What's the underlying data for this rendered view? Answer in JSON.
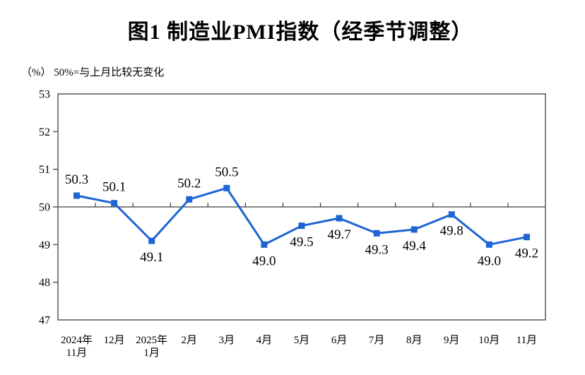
{
  "chart_data": {
    "type": "line",
    "title": "图1  制造业PMI指数（经季节调整）",
    "unit_note": "（%）  50%=与上月比较无变化",
    "categories": [
      "2024年\n11月",
      "12月",
      "2025年\n1月",
      "2月",
      "3月",
      "4月",
      "5月",
      "6月",
      "7月",
      "8月",
      "9月",
      "10月",
      "11月"
    ],
    "values": [
      50.3,
      50.1,
      49.1,
      50.2,
      50.5,
      49.0,
      49.5,
      49.7,
      49.3,
      49.4,
      49.8,
      49.0,
      49.2
    ],
    "labels": [
      "50.3",
      "50.1",
      "49.1",
      "50.2",
      "50.5",
      "49.0",
      "49.5",
      "49.7",
      "49.3",
      "49.4",
      "49.8",
      "49.0",
      "49.2"
    ],
    "ylim": [
      47,
      53
    ],
    "ytick_step": 1,
    "yticks": [
      "47",
      "48",
      "49",
      "50",
      "51",
      "52",
      "53"
    ],
    "reference_line": 50,
    "grid": false,
    "legend": false,
    "marker": "square",
    "colors": {
      "series": "#1e64d2",
      "axis": "#595959",
      "reference_line": "#3a3a3a",
      "text": "#000000",
      "background": "#ffffff"
    }
  }
}
